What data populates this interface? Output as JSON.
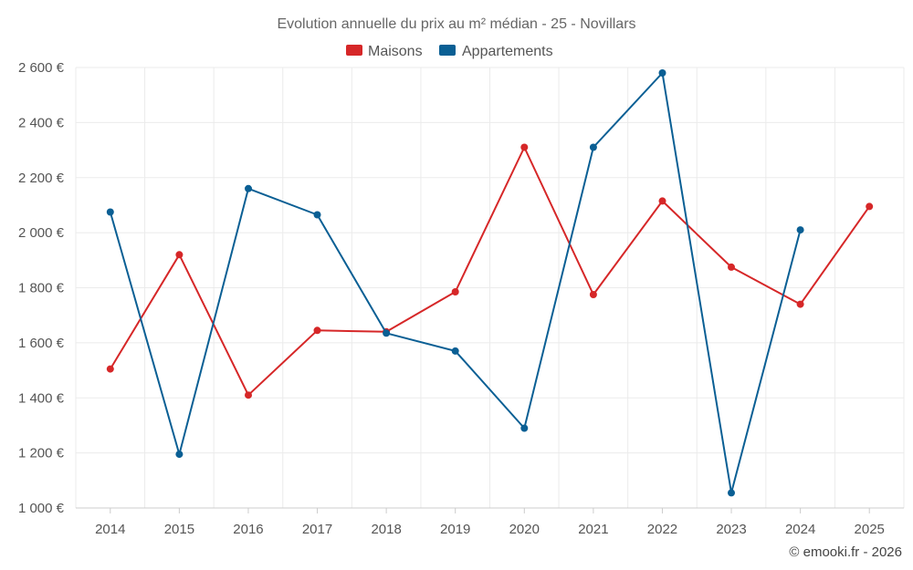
{
  "chart_data": {
    "type": "line",
    "title": "Evolution annuelle du prix au m² médian - 25 - Novillars",
    "categories": [
      "2014",
      "2015",
      "2016",
      "2017",
      "2018",
      "2019",
      "2020",
      "2021",
      "2022",
      "2023",
      "2024",
      "2025"
    ],
    "series": [
      {
        "name": "Maisons",
        "color": "#d62728",
        "values": [
          1505,
          1920,
          1410,
          1645,
          1640,
          1785,
          2310,
          1775,
          2115,
          1875,
          1740,
          2095
        ]
      },
      {
        "name": "Appartements",
        "color": "#0a5f94",
        "values": [
          2075,
          1195,
          2160,
          2065,
          1635,
          1570,
          1290,
          2310,
          2580,
          1055,
          2010,
          null
        ]
      }
    ],
    "ylim": [
      1000,
      2600
    ],
    "yticks": [
      1000,
      1200,
      1400,
      1600,
      1800,
      2000,
      2200,
      2400,
      2600
    ],
    "ytick_labels": [
      "1 000 €",
      "1 200 €",
      "1 400 €",
      "1 600 €",
      "1 800 €",
      "2 000 €",
      "2 200 €",
      "2 400 €",
      "2 600 €"
    ],
    "xlabel": "",
    "ylabel": "",
    "legend_position": "top-center",
    "grid": true
  },
  "credit": "© emooki.fr - 2026"
}
